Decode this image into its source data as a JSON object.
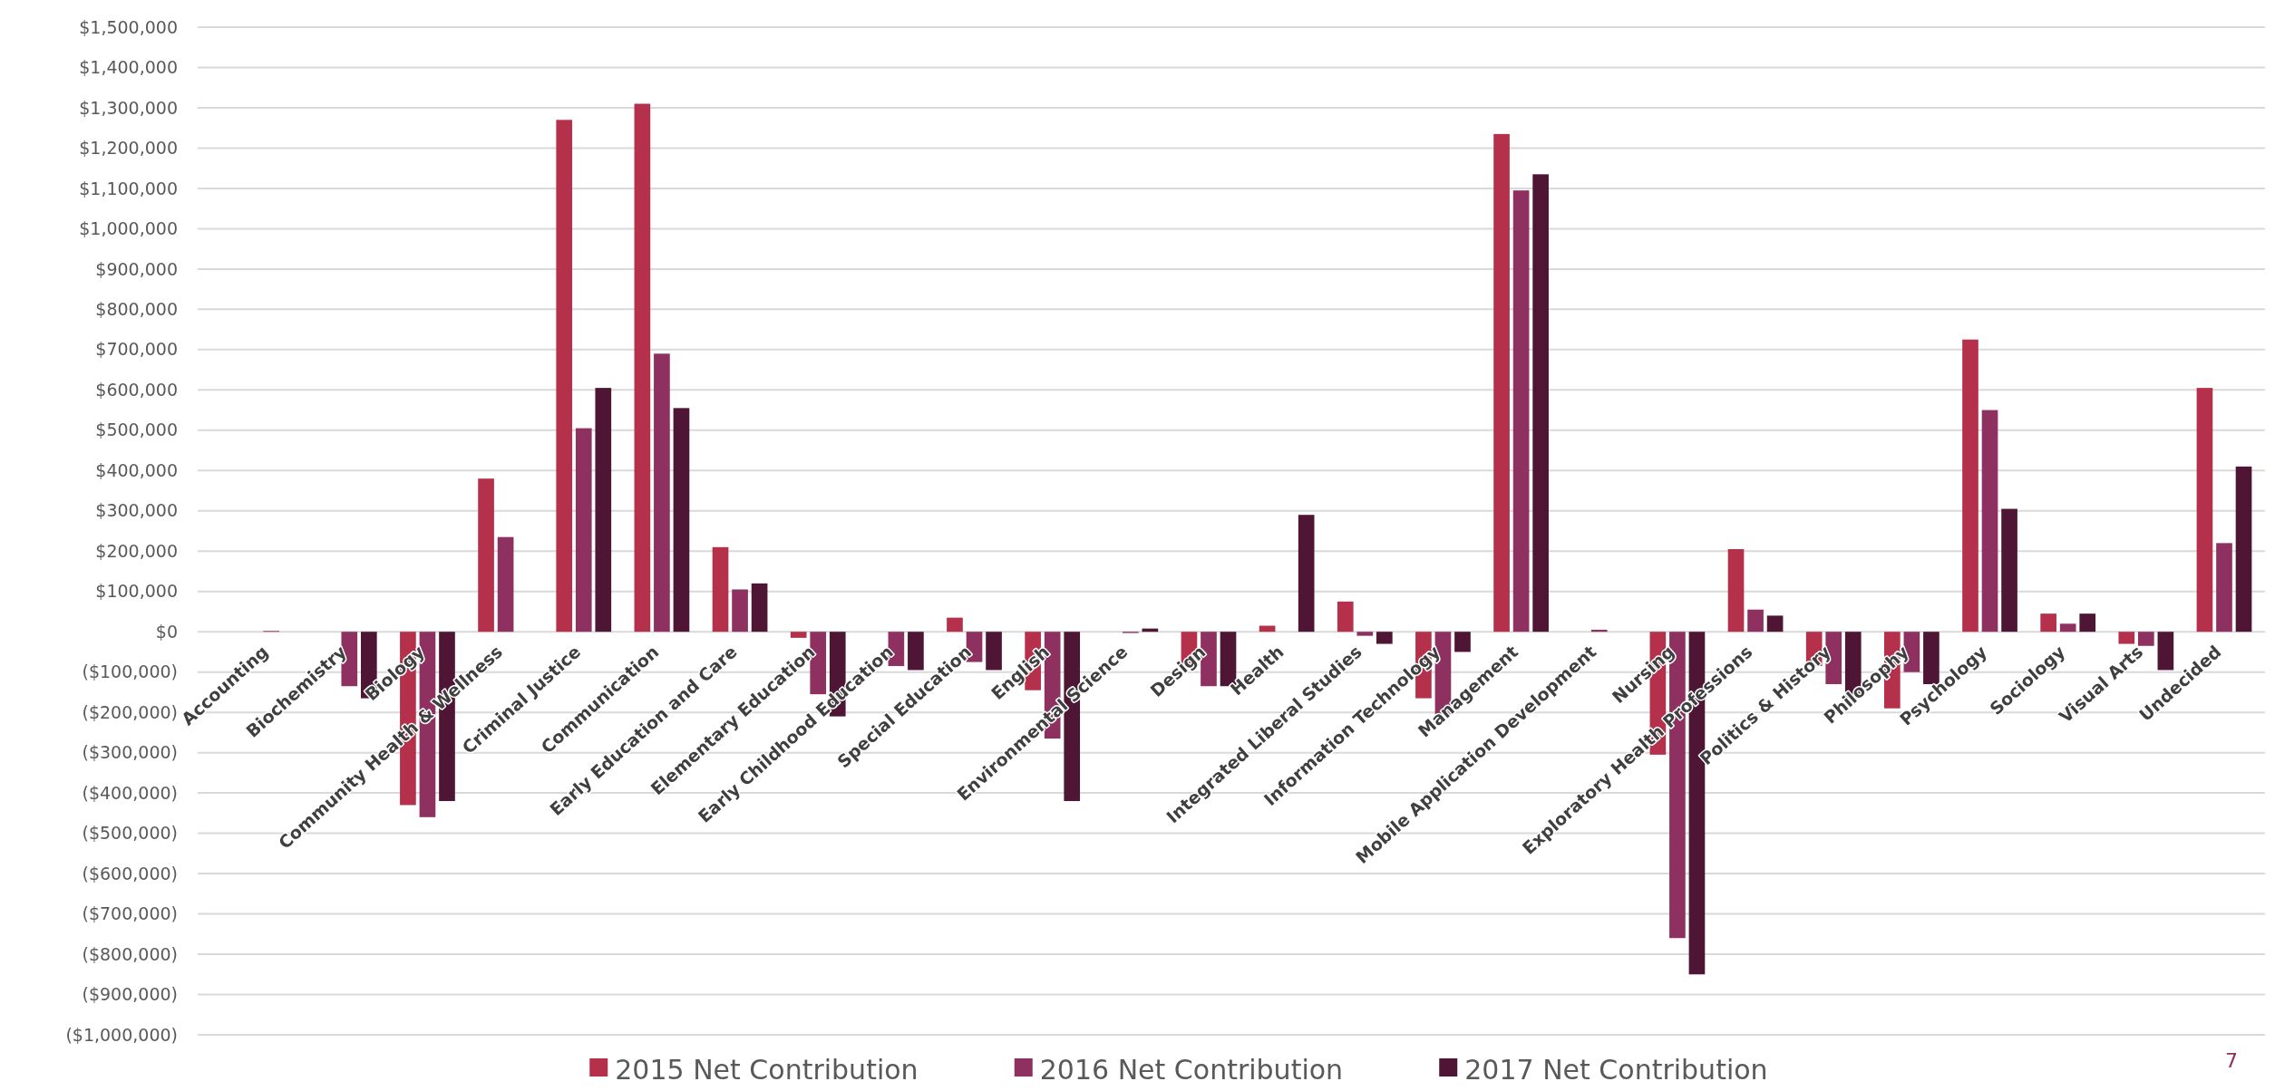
{
  "chart_data": {
    "type": "bar",
    "categories": [
      "Accounting",
      "Biochemistry",
      "Biology",
      "Community Health & Wellness",
      "Criminal Justice",
      "Communication",
      "Early Education and Care",
      "Elementary Education",
      "Early Childhood Education",
      "Special Education",
      "English",
      "Environmental Science",
      "Design",
      "Health",
      "Integrated Liberal Studies",
      "Information Technology",
      "Management",
      "Mobile Application Development",
      "Nursing",
      "Exploratory Health Professions",
      "Politics & History",
      "Philosophy",
      "Psychology",
      "Sociology",
      "Visual Arts",
      "Undecided"
    ],
    "series": [
      {
        "name": "2015 Net Contribution",
        "color": "#b5304a",
        "values": [
          0,
          0,
          -430000,
          380000,
          1270000,
          1310000,
          210000,
          -15000,
          0,
          35000,
          -145000,
          0,
          -80000,
          15000,
          75000,
          -165000,
          1235000,
          0,
          -305000,
          205000,
          -85000,
          -190000,
          725000,
          45000,
          -30000,
          605000
        ]
      },
      {
        "name": "2016 Net Contribution",
        "color": "#8e3060",
        "values": [
          2000,
          -135000,
          -460000,
          235000,
          505000,
          690000,
          105000,
          -155000,
          -85000,
          -75000,
          -265000,
          -3000,
          -135000,
          0,
          -10000,
          -205000,
          1095000,
          5000,
          -760000,
          55000,
          -130000,
          -100000,
          550000,
          20000,
          -35000,
          220000
        ]
      },
      {
        "name": "2017 Net Contribution",
        "color": "#4e1535",
        "values": [
          0,
          -165000,
          -420000,
          0,
          605000,
          555000,
          120000,
          -210000,
          -95000,
          -95000,
          -420000,
          8000,
          -135000,
          290000,
          -30000,
          -50000,
          1135000,
          0,
          -850000,
          40000,
          -165000,
          -130000,
          305000,
          45000,
          -95000,
          410000
        ]
      }
    ],
    "ylim": [
      -1000000,
      1500000
    ],
    "yticks": [
      {
        "value": -1000000,
        "label": "($1,000,000)"
      },
      {
        "value": -900000,
        "label": "($900,000)"
      },
      {
        "value": -800000,
        "label": "($800,000)"
      },
      {
        "value": -700000,
        "label": "($700,000)"
      },
      {
        "value": -600000,
        "label": "($600,000)"
      },
      {
        "value": -500000,
        "label": "($500,000)"
      },
      {
        "value": -400000,
        "label": "($400,000)"
      },
      {
        "value": -300000,
        "label": "($300,000)"
      },
      {
        "value": -200000,
        "label": "($200,000)"
      },
      {
        "value": -100000,
        "label": "($100,000)"
      },
      {
        "value": 0,
        "label": "$0"
      },
      {
        "value": 100000,
        "label": "$100,000"
      },
      {
        "value": 200000,
        "label": "$200,000"
      },
      {
        "value": 300000,
        "label": "$300,000"
      },
      {
        "value": 400000,
        "label": "$400,000"
      },
      {
        "value": 500000,
        "label": "$500,000"
      },
      {
        "value": 600000,
        "label": "$600,000"
      },
      {
        "value": 700000,
        "label": "$700,000"
      },
      {
        "value": 800000,
        "label": "$800,000"
      },
      {
        "value": 900000,
        "label": "$900,000"
      },
      {
        "value": 1000000,
        "label": "$1,000,000"
      },
      {
        "value": 1100000,
        "label": "$1,100,000"
      },
      {
        "value": 1200000,
        "label": "$1,200,000"
      },
      {
        "value": 1300000,
        "label": "$1,300,000"
      },
      {
        "value": 1400000,
        "label": "$1,400,000"
      },
      {
        "value": 1500000,
        "label": "$1,500,000"
      }
    ],
    "grid": "y",
    "legend": "bottom",
    "annotations": [
      "7"
    ]
  }
}
